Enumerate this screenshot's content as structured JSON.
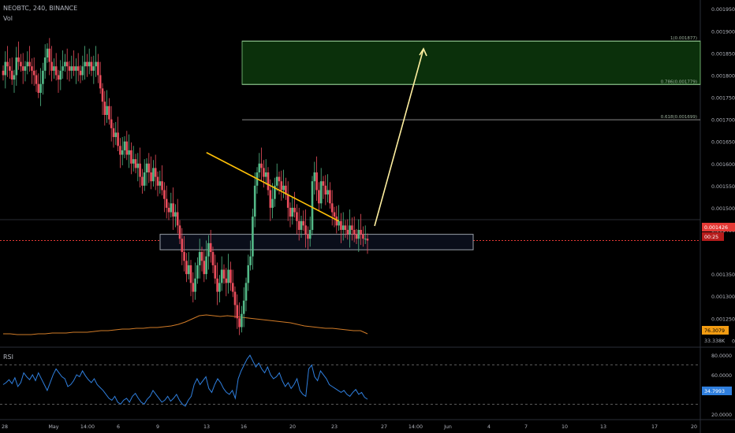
{
  "header": {
    "symbol_line": "NEOBTC, 240, BINANCE",
    "vol_label": "Vol"
  },
  "rsi_pane": {
    "label": "RSI"
  },
  "price_axis": {
    "ticks": [
      "0.001950",
      "0.001900",
      "0.001850",
      "0.001800",
      "0.001750",
      "0.001700",
      "0.001650",
      "0.001600",
      "0.001550",
      "0.001500",
      "0.001450",
      "0.001350",
      "0.001300",
      "0.001250",
      "0.001200"
    ],
    "current_price": "0.001426",
    "countdown": "00:25",
    "volume_ma": "76.3079",
    "volume_last": "33.338K"
  },
  "rsi_axis": {
    "ticks": [
      "80.0000",
      "60.0000",
      "20.0000"
    ],
    "current": "34.7993"
  },
  "time_axis": {
    "labels": [
      "28",
      "May",
      "14:00",
      "6",
      "9",
      "13",
      "16",
      "20",
      "23",
      "27",
      "14:00",
      "Jun",
      "4",
      "7",
      "10",
      "13",
      "17",
      "20"
    ]
  },
  "fib_levels": [
    {
      "label": "1(0.001877)"
    },
    {
      "label": "0.786(0.001779)"
    },
    {
      "label": "0.618(0.001699)"
    }
  ],
  "colors": {
    "bg": "#000000",
    "up": "#53b987",
    "down": "#eb4d5c",
    "trendline": "#ffc107",
    "arrow": "#fff0a0",
    "price_line": "#e53935",
    "volume_ma": "#d17b27",
    "rsi": "#2f7fde",
    "target_zone": "#0b300b",
    "support_zone": "#0a0e1a"
  },
  "chart_data": {
    "type": "candlestick",
    "symbol": "NEOBTC",
    "interval": "240",
    "ylim": [
      0.00119,
      0.00197
    ],
    "close_series": [
      0.0018,
      0.00183,
      0.00182,
      0.00181,
      0.00179,
      0.0018,
      0.00184,
      0.00183,
      0.00182,
      0.00181,
      0.00182,
      0.00183,
      0.00182,
      0.00181,
      0.0018,
      0.00178,
      0.00176,
      0.00178,
      0.00181,
      0.00184,
      0.00186,
      0.00183,
      0.00181,
      0.00182,
      0.0018,
      0.00179,
      0.00181,
      0.00182,
      0.00183,
      0.00182,
      0.00181,
      0.00182,
      0.00181,
      0.00182,
      0.00181,
      0.0018,
      0.00182,
      0.00183,
      0.00182,
      0.00183,
      0.00181,
      0.00182,
      0.00183,
      0.0018,
      0.00177,
      0.00174,
      0.00171,
      0.00173,
      0.0017,
      0.00168,
      0.00166,
      0.00167,
      0.00164,
      0.00162,
      0.00163,
      0.00165,
      0.00162,
      0.00163,
      0.0016,
      0.00161,
      0.00159,
      0.0016,
      0.00157,
      0.00155,
      0.00158,
      0.0016,
      0.00158,
      0.00156,
      0.00159,
      0.00157,
      0.00155,
      0.00156,
      0.00154,
      0.00152,
      0.0015,
      0.00149,
      0.00151,
      0.00148,
      0.00149,
      0.00146,
      0.00143,
      0.0014,
      0.00138,
      0.00135,
      0.00137,
      0.00133,
      0.00131,
      0.00134,
      0.00137,
      0.0014,
      0.00138,
      0.00135,
      0.00139,
      0.00142,
      0.0014,
      0.00137,
      0.00134,
      0.00131,
      0.00133,
      0.00136,
      0.00134,
      0.00133,
      0.00136,
      0.00133,
      0.00131,
      0.00128,
      0.00125,
      0.00123,
      0.00126,
      0.00129,
      0.00133,
      0.00137,
      0.00139,
      0.00148,
      0.00155,
      0.00158,
      0.0016,
      0.00159,
      0.00157,
      0.00158,
      0.00154,
      0.0015,
      0.00152,
      0.00155,
      0.00157,
      0.00156,
      0.00154,
      0.00155,
      0.00153,
      0.0015,
      0.00148,
      0.0015,
      0.00149,
      0.00147,
      0.00145,
      0.00147,
      0.00146,
      0.00144,
      0.00143,
      0.00145,
      0.00156,
      0.00158,
      0.00154,
      0.00151,
      0.00156,
      0.00155,
      0.00153,
      0.00154,
      0.00151,
      0.00149,
      0.00148,
      0.00146,
      0.00147,
      0.00145,
      0.00146,
      0.00145,
      0.00144,
      0.00146,
      0.00145,
      0.00144,
      0.00143,
      0.00145,
      0.00144,
      0.00143,
      0.00143,
      0.001426
    ],
    "volume_ma_series": [
      76,
      76,
      75,
      75,
      75,
      76,
      76,
      77,
      77,
      77,
      78,
      78,
      78,
      79,
      80,
      80,
      81,
      82,
      82,
      83,
      83,
      84,
      84,
      85,
      86,
      88,
      91,
      95,
      99,
      100,
      99,
      98,
      99,
      98,
      97,
      96,
      95,
      94,
      93,
      92,
      91,
      90,
      88,
      86,
      85,
      84,
      83,
      83,
      82,
      81,
      80,
      80,
      76
    ],
    "rsi_series": [
      50,
      52,
      55,
      51,
      57,
      48,
      52,
      62,
      58,
      55,
      60,
      54,
      62,
      56,
      50,
      44,
      52,
      60,
      66,
      62,
      58,
      56,
      48,
      50,
      54,
      60,
      58,
      64,
      59,
      55,
      52,
      56,
      50,
      47,
      44,
      40,
      36,
      34,
      38,
      32,
      30,
      34,
      36,
      32,
      38,
      41,
      36,
      32,
      30,
      35,
      38,
      44,
      40,
      36,
      32,
      34,
      38,
      33,
      36,
      40,
      34,
      30,
      28,
      34,
      38,
      50,
      56,
      50,
      54,
      58,
      46,
      42,
      50,
      56,
      52,
      46,
      42,
      40,
      44,
      36,
      56,
      64,
      70,
      76,
      80,
      74,
      68,
      72,
      66,
      62,
      68,
      60,
      56,
      58,
      62,
      54,
      48,
      52,
      46,
      50,
      56,
      44,
      40,
      38,
      66,
      70,
      58,
      54,
      64,
      60,
      56,
      50,
      48,
      46,
      44,
      42,
      44,
      40,
      38,
      42,
      45,
      40,
      42,
      37,
      35
    ],
    "rsi_levels": [
      70,
      30
    ],
    "rsi_ylim": [
      15,
      85
    ],
    "trendline": {
      "start": [
        16,
        0.001625
      ],
      "end": [
        53,
        0.00147
      ]
    },
    "target_zone": {
      "top": 0.001877,
      "bottom": 0.001779
    },
    "support_zone": {
      "top": 0.00144,
      "bottom": 0.001405
    },
    "fib_levels": [
      0.001877,
      0.001779,
      0.001699
    ]
  }
}
